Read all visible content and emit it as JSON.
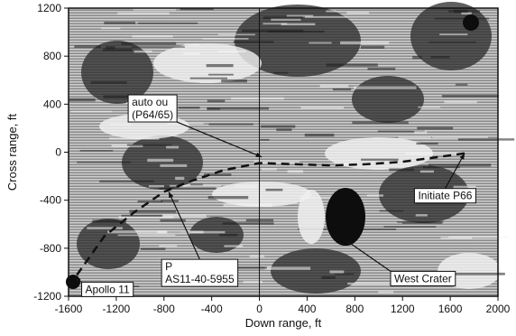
{
  "chart_data": {
    "type": "line",
    "title": "",
    "xlabel": "Down range, ft",
    "ylabel": "Cross range, ft",
    "xlim": [
      -1600,
      2000
    ],
    "ylim": [
      -1200,
      1200
    ],
    "x_ticks": [
      -1600,
      -1200,
      -800,
      -400,
      0,
      400,
      800,
      1200,
      1600,
      2000
    ],
    "y_ticks": [
      1200,
      800,
      400,
      0,
      -400,
      -800,
      -1200
    ],
    "grid": false,
    "background": "lunar surface photograph",
    "series": [
      {
        "style": "dashed",
        "x": [
          1720,
          1500,
          1200,
          900,
          600,
          300,
          0,
          -300,
          -600,
          -800,
          -1050,
          -1300,
          -1550
        ],
        "y": [
          -10,
          -40,
          -80,
          -100,
          -110,
          -100,
          -90,
          -150,
          -250,
          -330,
          -500,
          -700,
          -1050
        ]
      }
    ],
    "annotations": [
      {
        "lines": [
          "auto ou",
          "(P64/65)"
        ],
        "x": -1100,
        "y": 470,
        "arrow_to": [
          20,
          -40
        ]
      },
      {
        "lines": [
          "Initiate P66"
        ],
        "x": 1300,
        "y": -310,
        "arrow_to": [
          1720,
          -10
        ]
      },
      {
        "lines": [
          "West Crater"
        ],
        "x": 1100,
        "y": -1000,
        "arrow_to": [
          720,
          -730
        ]
      },
      {
        "lines": [
          "Apollo 11"
        ],
        "x": -1490,
        "y": -1090,
        "arrow_to": [
          -1550,
          -1050
        ]
      },
      {
        "lines": [
          "P",
          "AS11-40-5955"
        ],
        "x": -820,
        "y": -900,
        "arrow_to": [
          -760,
          -330
        ]
      }
    ]
  }
}
